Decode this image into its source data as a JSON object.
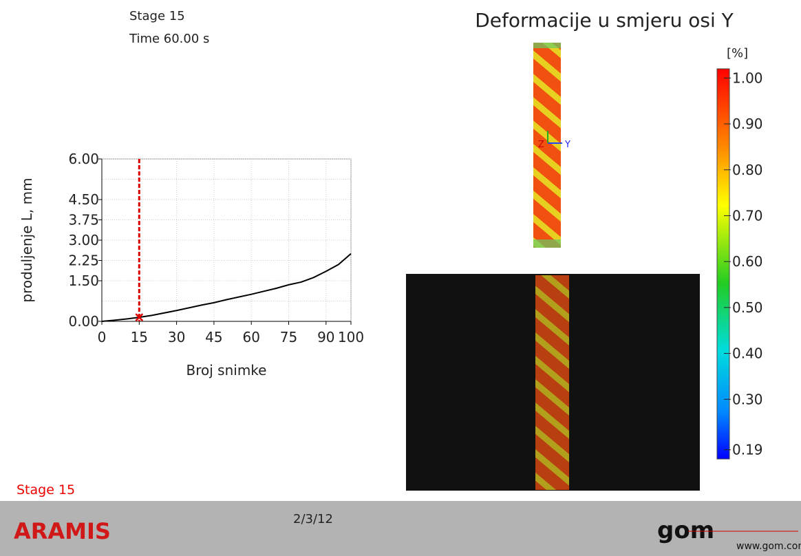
{
  "stage_info": {
    "stage": "Stage 15",
    "time": "Time  60.00 s"
  },
  "title": "Deformacije u smjeru osi Y",
  "colorbar": {
    "unit": "[%]",
    "range": [
      0.17,
      1.02
    ],
    "ticks": [
      {
        "value": 1.0,
        "label": "1.00"
      },
      {
        "value": 0.9,
        "label": "0.90"
      },
      {
        "value": 0.8,
        "label": "0.80"
      },
      {
        "value": 0.7,
        "label": "0.70"
      },
      {
        "value": 0.6,
        "label": "0.60"
      },
      {
        "value": 0.5,
        "label": "0.50"
      },
      {
        "value": 0.4,
        "label": "0.40"
      },
      {
        "value": 0.3,
        "label": "0.30"
      },
      {
        "value": 0.19,
        "label": "0.19"
      }
    ]
  },
  "axes_triad": [
    "Z",
    "Y"
  ],
  "chart_data": {
    "type": "line",
    "ylabel": "produljenje L, mm",
    "xlabel": "Broj snimke",
    "x": [
      0,
      5,
      10,
      15,
      20,
      30,
      40,
      45,
      50,
      60,
      70,
      75,
      80,
      85,
      90,
      95,
      100
    ],
    "series": [
      {
        "color": "#000000",
        "values": [
          0,
          0.04,
          0.09,
          0.15,
          0.22,
          0.4,
          0.6,
          0.69,
          0.8,
          1.0,
          1.22,
          1.35,
          1.45,
          1.62,
          1.85,
          2.1,
          2.5
        ]
      }
    ],
    "current": {
      "x": 15,
      "y": 0.15,
      "color": "#e00000"
    },
    "xlim": [
      0,
      100
    ],
    "xticks": [
      0,
      15,
      30,
      45,
      60,
      75,
      90,
      100
    ],
    "ylim": [
      0,
      6
    ],
    "yticks": [
      {
        "value": 0,
        "label": "0.00"
      },
      {
        "value": 1.5,
        "label": "1.50"
      },
      {
        "value": 2.25,
        "label": "2.25"
      },
      {
        "value": 3,
        "label": "3.00"
      },
      {
        "value": 3.75,
        "label": "3.75"
      },
      {
        "value": 4.5,
        "label": "4.50"
      },
      {
        "value": 6,
        "label": "6.00"
      }
    ],
    "y_minor_gridlines": [
      0.75,
      5.25
    ],
    "grid": true
  },
  "footer": {
    "stage": "Stage 15",
    "product": "ARAMIS",
    "date": "2/3/12",
    "logo": "gom",
    "url": "www.gom.com"
  }
}
